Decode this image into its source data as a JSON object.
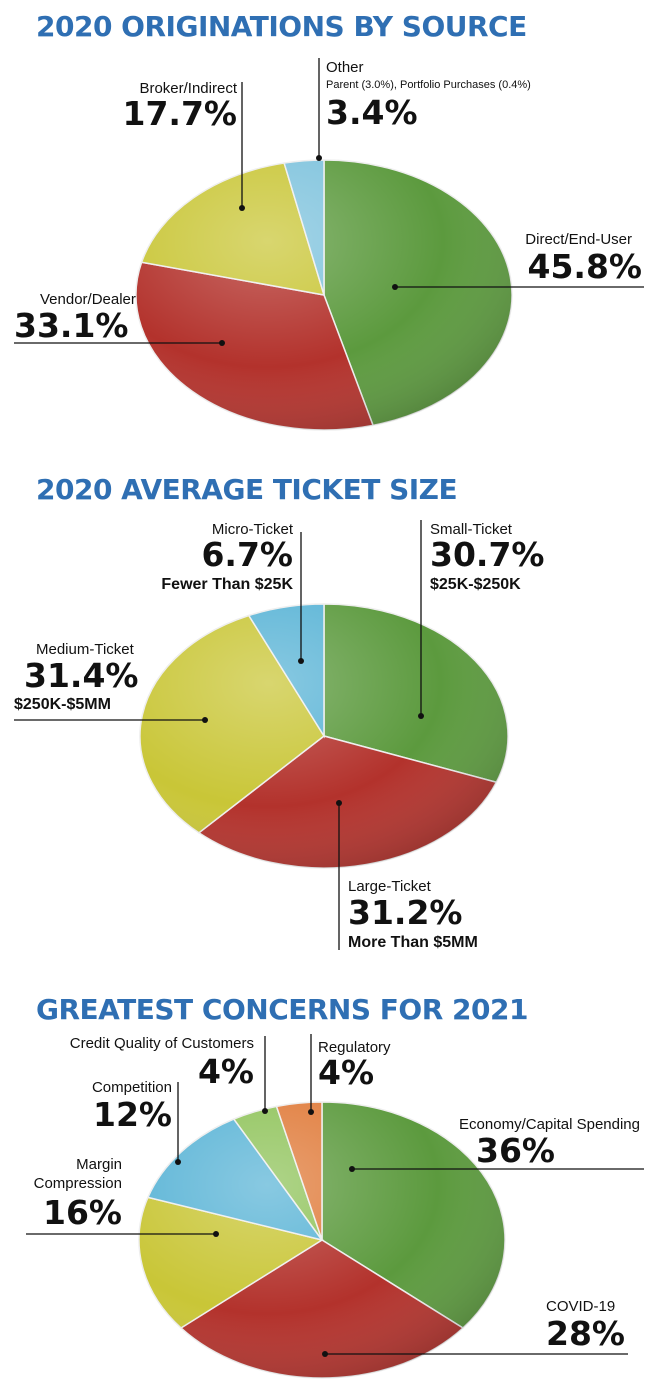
{
  "chart_data": [
    {
      "type": "pie",
      "title": "2020 ORIGINATIONS BY SOURCE",
      "slices": [
        {
          "label": "Direct/End-User",
          "value": 45.8,
          "value_label": "45.8%",
          "color": "#5c9a3e"
        },
        {
          "label": "Vendor/Dealer",
          "value": 33.1,
          "value_label": "33.1%",
          "color": "#b3322c"
        },
        {
          "label": "Broker/Indirect",
          "value": 17.7,
          "value_label": "17.7%",
          "color": "#c9c637"
        },
        {
          "label": "Other",
          "note": "Parent (3.0%), Portfolio Purchases (0.4%)",
          "value": 3.4,
          "value_label": "3.4%",
          "color": "#7fc3dd"
        }
      ]
    },
    {
      "type": "pie",
      "title": "2020 AVERAGE TICKET SIZE",
      "slices": [
        {
          "label": "Small-Ticket",
          "value": 30.7,
          "value_label": "30.7%",
          "sub": "$25K-$250K",
          "color": "#5c9a3e"
        },
        {
          "label": "Large-Ticket",
          "value": 31.2,
          "value_label": "31.2%",
          "sub": "More Than $5MM",
          "color": "#b3322c"
        },
        {
          "label": "Medium-Ticket",
          "value": 31.4,
          "value_label": "31.4%",
          "sub": "$250K-$5MM",
          "color": "#c9c637"
        },
        {
          "label": "Micro-Ticket",
          "value": 6.7,
          "value_label": "6.7%",
          "sub": "Fewer Than $25K",
          "color": "#5ab4d6"
        }
      ]
    },
    {
      "type": "pie",
      "title": "GREATEST CONCERNS FOR 2021",
      "slices": [
        {
          "label": "Economy/Capital Spending",
          "value": 36,
          "value_label": "36%",
          "color": "#5c9a3e"
        },
        {
          "label": "COVID-19",
          "value": 28,
          "value_label": "28%",
          "color": "#b3322c"
        },
        {
          "label": "Margin Compression",
          "value": 16,
          "value_label": "16%",
          "color": "#c9c637"
        },
        {
          "label": "Competition",
          "value": 12,
          "value_label": "12%",
          "color": "#5ab4d6"
        },
        {
          "label": "Credit Quality of Customers",
          "value": 4,
          "value_label": "4%",
          "color": "#8fc35a"
        },
        {
          "label": "Regulatory",
          "value": 4,
          "value_label": "4%",
          "color": "#e07b3a"
        }
      ]
    }
  ]
}
